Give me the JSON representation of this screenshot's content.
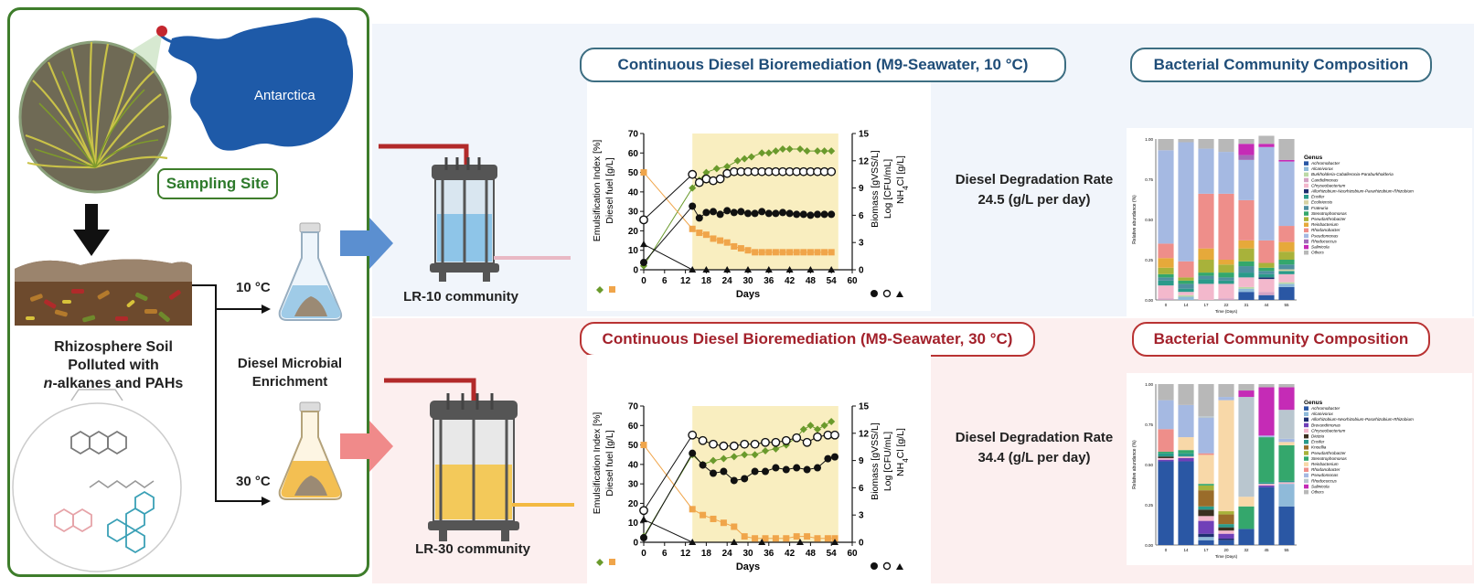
{
  "left": {
    "map_label": "Antarctica",
    "sampling_site": "Sampling Site",
    "soil_label_line1": "Rhizosphere Soil",
    "soil_label_line2": "Polluted with",
    "soil_label_line3_italic": "n",
    "soil_label_line3_rest": "-alkanes and PAHs",
    "enrichment_line1": "Diesel Microbial",
    "enrichment_line2": "Enrichment",
    "temp_low": "10 °C",
    "temp_high": "30 °C"
  },
  "top": {
    "title": "Continuous Diesel Bioremediation (M9-Seawater, 10 °C)",
    "community": "LR-10 community",
    "rate_line1": "Diesel Degradation Rate",
    "rate_line2": "24.5 (g/L per day)",
    "composition_title": "Bacterial Community Composition"
  },
  "bottom": {
    "title": "Continuous Diesel Bioremediation (M9-Seawater, 30 °C)",
    "community": "LR-30 community",
    "rate_line1": "Diesel Degradation Rate",
    "rate_line2": "34.4 (g/L per day)",
    "composition_title": "Bacterial Community Composition"
  },
  "colors": {
    "green_border": "#3e7d2b",
    "blue_title": "#1f4d78",
    "red_title": "#a3212b",
    "emulsification": "#6a9a2c",
    "diesel": "#f0a54a",
    "shade": "#f9eec0"
  },
  "chart_data": [
    {
      "type": "line",
      "id": "top_line",
      "xlabel": "Days",
      "x_ticks": [
        "0",
        "6",
        "12",
        "18",
        "24",
        "30",
        "36",
        "42",
        "48",
        "54",
        "60"
      ],
      "y_left_ticks": [
        "0",
        "10",
        "20",
        "30",
        "40",
        "50",
        "60",
        "70"
      ],
      "y_right_ticks": [
        "0",
        "3",
        "6",
        "9",
        "12",
        "15"
      ],
      "ylabel_left_1": "Emulsification Index [%]",
      "ylabel_left_2": "Diesel fuel [g/L]",
      "ylabel_right_1": "Biomass [gVSS/L]",
      "ylabel_right_2": "Log [CFU/mL]",
      "ylabel_right_3": "NH",
      "ylabel_right_3_sub": "4",
      "ylabel_right_3_rest": "Cl [g/L]",
      "xlim": [
        0,
        60
      ],
      "ylim_left": [
        0,
        70
      ],
      "ylim_right": [
        0,
        15
      ],
      "shade_x": [
        14,
        56
      ],
      "series": [
        {
          "axis": "left",
          "marker": "diamond",
          "color": "#6a9a2c",
          "x": [
            0,
            14,
            16,
            18,
            21,
            24,
            27,
            29,
            31,
            34,
            36,
            38,
            40,
            42,
            45,
            47,
            50,
            52,
            54
          ],
          "y": [
            2,
            42,
            46,
            50,
            52,
            53,
            56,
            57,
            58,
            60,
            60,
            61,
            62,
            62,
            62,
            61,
            61,
            61,
            61
          ]
        },
        {
          "axis": "left",
          "marker": "square",
          "color": "#f0a54a",
          "x": [
            0,
            14,
            16,
            18,
            20,
            22,
            24,
            26,
            28,
            30,
            32,
            34,
            36,
            38,
            40,
            42,
            44,
            46,
            48,
            50,
            52,
            54
          ],
          "y": [
            50,
            21,
            19,
            18,
            16,
            15,
            14,
            12,
            11,
            10,
            9,
            9,
            9,
            9,
            9,
            9,
            9,
            9,
            9,
            9,
            9,
            9
          ]
        },
        {
          "axis": "right",
          "marker": "dot",
          "color": "#111111",
          "x": [
            0,
            14,
            16,
            18,
            20,
            22,
            24,
            26,
            28,
            30,
            32,
            34,
            36,
            38,
            40,
            42,
            44,
            46,
            48,
            50,
            52,
            54
          ],
          "y": [
            0.8,
            7.0,
            5.7,
            6.3,
            6.4,
            6.1,
            6.5,
            6.3,
            6.4,
            6.2,
            6.2,
            6.4,
            6.2,
            6.2,
            6.3,
            6.2,
            6.1,
            6.1,
            6.0,
            6.1,
            6.1,
            6.1
          ]
        },
        {
          "axis": "right",
          "marker": "circle",
          "color": "#111111",
          "x": [
            0,
            14,
            16,
            18,
            20,
            22,
            24,
            26,
            28,
            30,
            32,
            34,
            36,
            38,
            40,
            42,
            44,
            46,
            48,
            50,
            52,
            54
          ],
          "y": [
            5.5,
            10.5,
            9.6,
            10.0,
            9.8,
            10.0,
            10.6,
            10.8,
            10.8,
            10.8,
            10.8,
            10.8,
            10.8,
            10.8,
            10.8,
            10.8,
            10.8,
            10.8,
            10.8,
            10.8,
            10.8,
            10.8
          ]
        },
        {
          "axis": "right",
          "marker": "triangle",
          "color": "#111111",
          "x": [
            0,
            14,
            18,
            24,
            30,
            36,
            42,
            48,
            54
          ],
          "y": [
            2.8,
            0,
            0,
            0,
            0,
            0,
            0,
            0,
            0
          ]
        }
      ]
    },
    {
      "type": "line",
      "id": "bottom_line",
      "xlabel": "Days",
      "x_ticks": [
        "0",
        "6",
        "12",
        "18",
        "24",
        "30",
        "36",
        "42",
        "48",
        "54",
        "60"
      ],
      "y_left_ticks": [
        "0",
        "10",
        "20",
        "30",
        "40",
        "50",
        "60",
        "70"
      ],
      "y_right_ticks": [
        "0",
        "3",
        "6",
        "9",
        "12",
        "15"
      ],
      "ylabel_left_1": "Emulsification Index [%]",
      "ylabel_left_2": "Diesel fuel [g/L]",
      "ylabel_right_1": "Biomass [gVSS/L]",
      "ylabel_right_2": "Log [CFU/mL]",
      "ylabel_right_3": "NH",
      "ylabel_right_3_sub": "4",
      "ylabel_right_3_rest": "Cl [g/L]",
      "xlim": [
        0,
        60
      ],
      "ylim_left": [
        0,
        70
      ],
      "ylim_right": [
        0,
        15
      ],
      "shade_x": [
        14,
        56
      ],
      "series": [
        {
          "axis": "left",
          "marker": "diamond",
          "color": "#6a9a2c",
          "x": [
            0,
            14,
            17,
            20,
            23,
            26,
            29,
            32,
            35,
            38,
            41,
            44,
            46,
            48,
            50,
            52,
            54
          ],
          "y": [
            3,
            45,
            40,
            42,
            43,
            44,
            45,
            45,
            47,
            48,
            50,
            54,
            58,
            60,
            58,
            60,
            62
          ]
        },
        {
          "axis": "left",
          "marker": "square",
          "color": "#f0a54a",
          "x": [
            0,
            14,
            17,
            20,
            23,
            26,
            29,
            32,
            35,
            38,
            41,
            44,
            47,
            50,
            53,
            55
          ],
          "y": [
            50,
            17,
            14,
            12,
            10,
            8,
            3,
            2,
            2,
            2,
            2,
            3,
            3,
            2,
            2,
            2
          ]
        },
        {
          "axis": "right",
          "marker": "dot",
          "color": "#111111",
          "x": [
            0,
            14,
            17,
            20,
            23,
            26,
            29,
            32,
            35,
            38,
            41,
            44,
            47,
            50,
            53,
            55
          ],
          "y": [
            0.5,
            9.8,
            8.5,
            7.6,
            7.8,
            6.8,
            7.0,
            7.8,
            7.8,
            8.2,
            8.0,
            8.2,
            8.0,
            8.2,
            9.2,
            9.4
          ]
        },
        {
          "axis": "right",
          "marker": "circle",
          "color": "#111111",
          "x": [
            0,
            14,
            17,
            20,
            23,
            26,
            29,
            32,
            35,
            38,
            41,
            44,
            47,
            50,
            53,
            55
          ],
          "y": [
            3.5,
            11.8,
            11.2,
            10.8,
            10.6,
            10.6,
            10.8,
            10.8,
            11.0,
            11.0,
            11.2,
            11.5,
            11.0,
            11.6,
            11.8,
            11.8
          ]
        },
        {
          "axis": "right",
          "marker": "triangle",
          "color": "#111111",
          "x": [
            0,
            14,
            26,
            34,
            45,
            55
          ],
          "y": [
            2.5,
            0,
            0,
            0,
            0,
            0
          ]
        }
      ]
    },
    {
      "type": "bar",
      "id": "top_stack",
      "stacked": true,
      "ylabel": "Relative abundance (%)",
      "xlabel": "Time (Days)",
      "categories": [
        "0",
        "14",
        "17",
        "22",
        "31",
        "44",
        "55"
      ],
      "y_ticks": [
        "0.00",
        "0.25",
        "0.50",
        "0.75",
        "1.00"
      ],
      "legend_title": "Genus",
      "series": [
        {
          "name": "Achromobacter",
          "color": "#2a57a4",
          "values": [
            0,
            0,
            0,
            0,
            0.05,
            0.03,
            0.08
          ]
        },
        {
          "name": "Alcanivorax",
          "color": "#8fbad9",
          "values": [
            0,
            0.02,
            0,
            0,
            0.02,
            0,
            0.02
          ]
        },
        {
          "name": "Burkholderia-Caballeronia-Paraburkholderia",
          "color": "#bcd9a6",
          "values": [
            0,
            0.01,
            0,
            0,
            0.01,
            0,
            0.01
          ]
        },
        {
          "name": "Candidimonas",
          "color": "#d4a2c4",
          "values": [
            0.01,
            0,
            0,
            0.01,
            0,
            0.02,
            0
          ]
        },
        {
          "name": "Chryseobacterium",
          "color": "#f3b8cc",
          "values": [
            0.08,
            0.02,
            0.1,
            0.09,
            0.06,
            0.08,
            0.05
          ]
        },
        {
          "name": "Allorhizobium-Neorhizobium-Pararhizobium-Rhizobium",
          "color": "#1f2f70",
          "values": [
            0,
            0,
            0,
            0,
            0,
            0.01,
            0
          ]
        },
        {
          "name": "Ensifer",
          "color": "#2a9a8a",
          "values": [
            0.03,
            0.02,
            0.03,
            0.02,
            0.03,
            0.02,
            0.02
          ]
        },
        {
          "name": "Ecoliriensis",
          "color": "#d7d3a4",
          "values": [
            0,
            0,
            0,
            0,
            0,
            0,
            0.01
          ]
        },
        {
          "name": "Frateuria",
          "color": "#4f8f9f",
          "values": [
            0.02,
            0.03,
            0.02,
            0.02,
            0.04,
            0.02,
            0.03
          ]
        },
        {
          "name": "Stenotrophomonas",
          "color": "#34a76c",
          "values": [
            0.02,
            0.02,
            0.02,
            0.03,
            0.03,
            0.02,
            0.03
          ]
        },
        {
          "name": "Pseudarthrobacter",
          "color": "#a8b23a",
          "values": [
            0.04,
            0.02,
            0.08,
            0.05,
            0.08,
            0.03,
            0.05
          ]
        },
        {
          "name": "Reinbacterium",
          "color": "#e6a93a",
          "values": [
            0.06,
            0,
            0.07,
            0.03,
            0.05,
            0,
            0.06
          ]
        },
        {
          "name": "Rhodanobacter",
          "color": "#ee8e8a",
          "values": [
            0.09,
            0.1,
            0.34,
            0.41,
            0.25,
            0.14,
            0.1
          ]
        },
        {
          "name": "Pseudomonas",
          "color": "#a5b9e2",
          "values": [
            0.58,
            0.74,
            0.28,
            0.26,
            0.25,
            0.58,
            0.4
          ]
        },
        {
          "name": "Rhodococcus",
          "color": "#a36ab8",
          "values": [
            0,
            0,
            0,
            0,
            0.03,
            0,
            0
          ]
        },
        {
          "name": "Salinicola",
          "color": "#c52bb6",
          "values": [
            0,
            0,
            0,
            0,
            0.07,
            0.02,
            0.01
          ]
        },
        {
          "name": "Others",
          "color": "#b8b8b8",
          "values": [
            0.07,
            0.02,
            0.06,
            0.08,
            0.03,
            0.05,
            0.13
          ]
        }
      ]
    },
    {
      "type": "bar",
      "id": "bottom_stack",
      "stacked": true,
      "ylabel": "Relative abundance (%)",
      "xlabel": "Time (Days)",
      "categories": [
        "0",
        "14",
        "17",
        "20",
        "32",
        "45",
        "55"
      ],
      "y_ticks": [
        "0.00",
        "0.25",
        "0.50",
        "0.75",
        "1.00"
      ],
      "legend_title": "Genus",
      "series": [
        {
          "name": "Achromobacter",
          "color": "#2a57a4",
          "values": [
            0.52,
            0.52,
            0.03,
            0.03,
            0.1,
            0.36,
            0.24
          ]
        },
        {
          "name": "Alcanivorax",
          "color": "#8fbad9",
          "values": [
            0,
            0,
            0.02,
            0,
            0,
            0,
            0.14
          ]
        },
        {
          "name": "Allorhizobium-Neorhizobium-Pararhizobium-Rhizobium",
          "color": "#1f2f70",
          "values": [
            0,
            0,
            0.02,
            0.01,
            0,
            0,
            0
          ]
        },
        {
          "name": "Brevundimonas",
          "color": "#7040b8",
          "values": [
            0.01,
            0.02,
            0.08,
            0.03,
            0,
            0.01,
            0
          ]
        },
        {
          "name": "Chryseobacterium",
          "color": "#f3b8cc",
          "values": [
            0.01,
            0.01,
            0.03,
            0.02,
            0,
            0.01,
            0.01
          ]
        },
        {
          "name": "Dietzia",
          "color": "#3b3020",
          "values": [
            0.01,
            0,
            0.04,
            0.02,
            0,
            0,
            0
          ]
        },
        {
          "name": "Ensifer",
          "color": "#2a9a8a",
          "values": [
            0.02,
            0.02,
            0.02,
            0.02,
            0,
            0.01,
            0.01
          ]
        },
        {
          "name": "Knoellia",
          "color": "#9a6c2a",
          "values": [
            0,
            0,
            0.1,
            0.06,
            0,
            0,
            0
          ]
        },
        {
          "name": "Pseudarthrobacter",
          "color": "#a8b23a",
          "values": [
            0,
            0,
            0.03,
            0.02,
            0,
            0,
            0
          ]
        },
        {
          "name": "Stenotrophomonas",
          "color": "#34a76c",
          "values": [
            0.01,
            0.02,
            0.01,
            0,
            0.14,
            0.28,
            0.22
          ]
        },
        {
          "name": "Reinbacterium",
          "color": "#f8d8a8",
          "values": [
            0,
            0.08,
            0.18,
            0.69,
            0.06,
            0,
            0.02
          ]
        },
        {
          "name": "Rhodanobacter",
          "color": "#ee8e8a",
          "values": [
            0.14,
            0,
            0.01,
            0,
            0,
            0,
            0
          ]
        },
        {
          "name": "Pseudomonas",
          "color": "#a5b9e2",
          "values": [
            0.18,
            0.2,
            0.22,
            0.02,
            0,
            0.01,
            0.02
          ]
        },
        {
          "name": "Rhodococcus",
          "color": "#b9c6cf",
          "values": [
            0,
            0,
            0.01,
            0,
            0.62,
            0,
            0.18
          ]
        },
        {
          "name": "Salinicola",
          "color": "#c52bb6",
          "values": [
            0,
            0,
            0,
            0,
            0.04,
            0.3,
            0.14
          ]
        },
        {
          "name": "Others",
          "color": "#b8b8b8",
          "values": [
            0.1,
            0.13,
            0.2,
            0.08,
            0.04,
            0.02,
            0.02
          ]
        }
      ]
    }
  ]
}
